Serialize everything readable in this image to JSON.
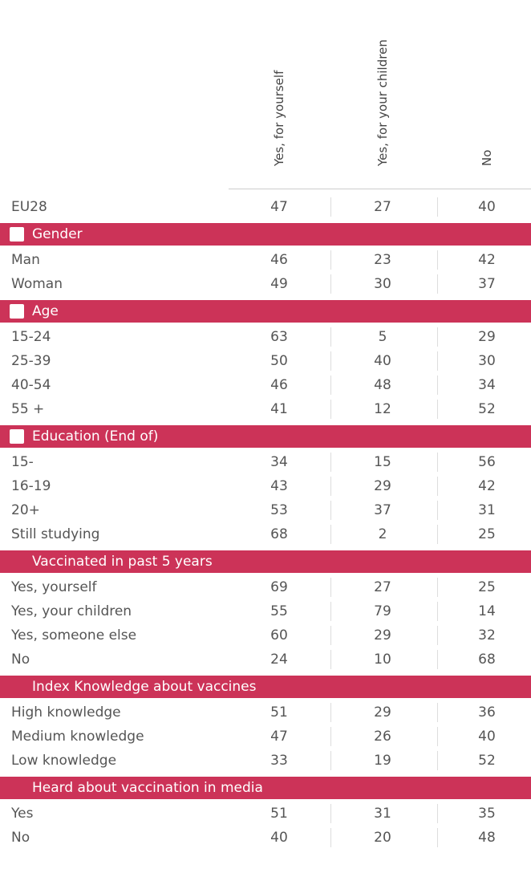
{
  "table": {
    "columns": [
      "Yes, for yourself",
      "Yes, for your children",
      "No"
    ],
    "total": {
      "label": "EU28",
      "values": [
        47,
        27,
        40
      ]
    },
    "sections": [
      {
        "title": "Gender",
        "rows": [
          {
            "label": "Man",
            "values": [
              46,
              23,
              42
            ]
          },
          {
            "label": "Woman",
            "values": [
              49,
              30,
              37
            ]
          }
        ]
      },
      {
        "title": "Age",
        "rows": [
          {
            "label": "15-24",
            "values": [
              63,
              5,
              29
            ]
          },
          {
            "label": "25-39",
            "values": [
              50,
              40,
              30
            ]
          },
          {
            "label": "40-54",
            "values": [
              46,
              48,
              34
            ]
          },
          {
            "label": "55 +",
            "values": [
              41,
              12,
              52
            ]
          }
        ]
      },
      {
        "title": "Education (End of)",
        "rows": [
          {
            "label": "15-",
            "values": [
              34,
              15,
              56
            ]
          },
          {
            "label": "16-19",
            "values": [
              43,
              29,
              42
            ]
          },
          {
            "label": "20+",
            "values": [
              53,
              37,
              31
            ]
          },
          {
            "label": "Still studying",
            "values": [
              68,
              2,
              25
            ]
          }
        ]
      },
      {
        "title": "Vaccinated in past 5 years",
        "rows": [
          {
            "label": "Yes, yourself",
            "values": [
              69,
              27,
              25
            ]
          },
          {
            "label": "Yes, your children",
            "values": [
              55,
              79,
              14
            ]
          },
          {
            "label": "Yes, someone else",
            "values": [
              60,
              29,
              32
            ]
          },
          {
            "label": "No",
            "values": [
              24,
              10,
              68
            ]
          }
        ]
      },
      {
        "title": "Index Knowledge about vaccines",
        "rows": [
          {
            "label": "High knowledge",
            "values": [
              51,
              29,
              36
            ]
          },
          {
            "label": "Medium knowledge",
            "values": [
              47,
              26,
              40
            ]
          },
          {
            "label": "Low knowledge",
            "values": [
              33,
              19,
              52
            ]
          }
        ]
      },
      {
        "title": "Heard about vaccination in media",
        "rows": [
          {
            "label": "Yes",
            "values": [
              51,
              31,
              35
            ]
          },
          {
            "label": "No",
            "values": [
              40,
              20,
              48
            ]
          }
        ]
      }
    ]
  }
}
